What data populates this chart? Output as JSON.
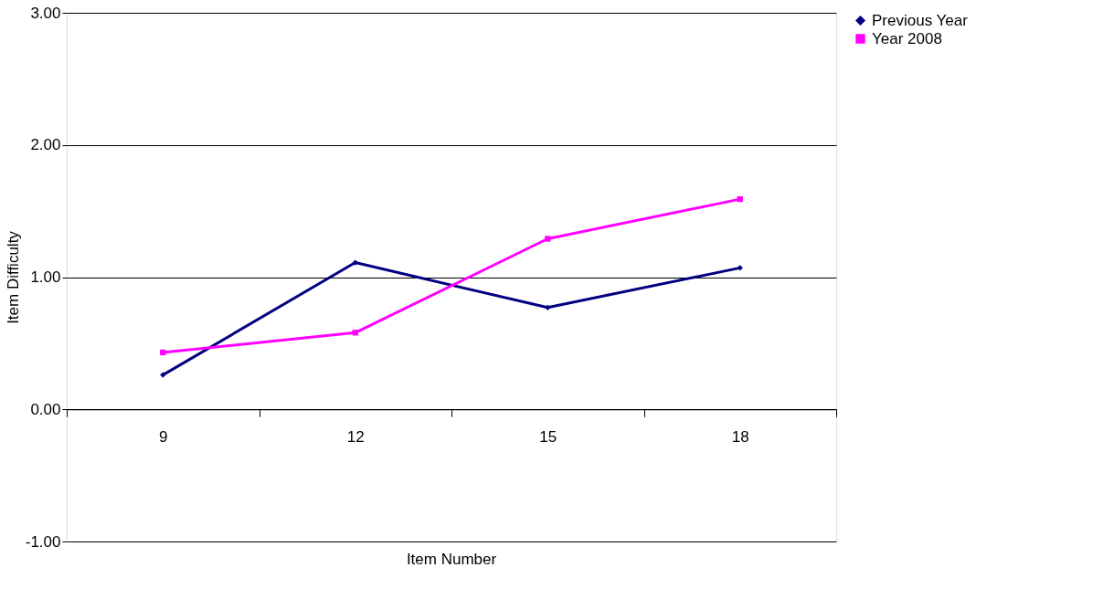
{
  "chart_data": {
    "type": "line",
    "xlabel": "Item Number",
    "ylabel": "Item Difficulty",
    "categories": [
      "9",
      "12",
      "15",
      "18"
    ],
    "series": [
      {
        "name": "Previous Year",
        "color": "#000080",
        "marker": "diamond",
        "values": [
          0.26,
          1.11,
          0.77,
          1.07
        ]
      },
      {
        "name": "Year 2008",
        "color": "#ff00ff",
        "marker": "square",
        "values": [
          0.43,
          0.58,
          1.29,
          1.59
        ]
      }
    ],
    "ylim": [
      -1,
      3
    ],
    "yticks": [
      {
        "value": -1,
        "label": "-1.00"
      },
      {
        "value": 0,
        "label": "0.00"
      },
      {
        "value": 1,
        "label": "1.00"
      },
      {
        "value": 2,
        "label": "2.00"
      },
      {
        "value": 3,
        "label": "3.00"
      }
    ],
    "grid": "y",
    "legend": "right"
  }
}
